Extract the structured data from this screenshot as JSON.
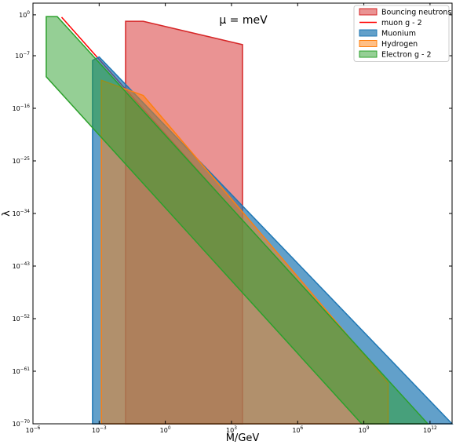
{
  "chart_data": {
    "type": "area",
    "annotation": "μ = meV",
    "xlabel": "M/GeV",
    "ylabel": "λ",
    "xscale": "log",
    "yscale": "log",
    "xlim_log10": [
      -6,
      13
    ],
    "ylim_log10": [
      -70,
      2
    ],
    "x_ticks": [
      {
        "log10": -6,
        "label": "10−6"
      },
      {
        "log10": -3,
        "label": "10−3"
      },
      {
        "log10": 0,
        "label": "100"
      },
      {
        "log10": 3,
        "label": "103"
      },
      {
        "log10": 6,
        "label": "106"
      },
      {
        "log10": 9,
        "label": "109"
      },
      {
        "log10": 12,
        "label": "1012"
      }
    ],
    "y_ticks": [
      {
        "log10": 0,
        "label": "100"
      },
      {
        "log10": -7,
        "label": "10−7"
      },
      {
        "log10": -16,
        "label": "10−16"
      },
      {
        "log10": -25,
        "label": "10−25"
      },
      {
        "log10": -34,
        "label": "10−34"
      },
      {
        "log10": -43,
        "label": "10−43"
      },
      {
        "log10": -52,
        "label": "10−52"
      },
      {
        "log10": -61,
        "label": "10−61"
      },
      {
        "log10": -70,
        "label": "10−70"
      }
    ],
    "grid": false,
    "legend_position": "top-right",
    "series": [
      {
        "name": "Bouncing neutrons",
        "kind": "band",
        "color": "#d62728",
        "fill_opacity": 0.5,
        "polygon_log10": [
          [
            -1.8,
            -1.1
          ],
          [
            -1,
            -1.1
          ],
          [
            3.5,
            -5.1
          ],
          [
            3.5,
            -70
          ],
          [
            -1.8,
            -70
          ]
        ]
      },
      {
        "name": "muon g - 2",
        "kind": "line",
        "color": "#ff0000",
        "points_log10": [
          [
            -4.7,
            -0.4
          ],
          [
            2.5,
            -31
          ]
        ]
      },
      {
        "name": "Muonium",
        "kind": "band",
        "color": "#1f77b4",
        "fill_opacity": 0.7,
        "polygon_log10": [
          [
            -3.3,
            -69.9
          ],
          [
            -3.3,
            -7.8
          ],
          [
            -3,
            -7.2
          ],
          [
            13,
            -70
          ],
          [
            -3.3,
            -70
          ]
        ]
      },
      {
        "name": "Hydrogen",
        "kind": "band",
        "color": "#ff7f0e",
        "fill_opacity": 0.5,
        "polygon_log10": [
          [
            -2.9,
            -70
          ],
          [
            -2.9,
            -11.2
          ],
          [
            -1,
            -13.8
          ],
          [
            10.1,
            -63
          ],
          [
            10.1,
            -70
          ]
        ]
      },
      {
        "name": "Electron g - 2",
        "kind": "band",
        "color": "#2ca02c",
        "fill_opacity": 0.5,
        "polygon_log10": [
          [
            -5.4,
            -0.3
          ],
          [
            -4.9,
            -0.3
          ],
          [
            11.9,
            -70
          ],
          [
            8.9,
            -70
          ],
          [
            -5.4,
            -10.6
          ]
        ]
      }
    ]
  }
}
